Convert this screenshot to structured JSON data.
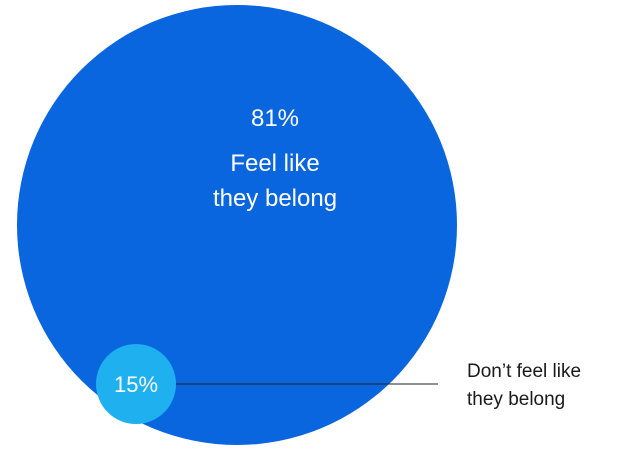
{
  "chart_data": {
    "type": "pie",
    "style": "nested proportional circles",
    "series": [
      {
        "value": 81,
        "value_label": "81%",
        "label_lines": [
          "Feel like",
          "they belong"
        ],
        "color": "#0a66de"
      },
      {
        "value": 15,
        "value_label": "15%",
        "label_lines": [
          "Don’t feel like",
          "they belong"
        ],
        "color": "#1fb0ef"
      }
    ]
  }
}
